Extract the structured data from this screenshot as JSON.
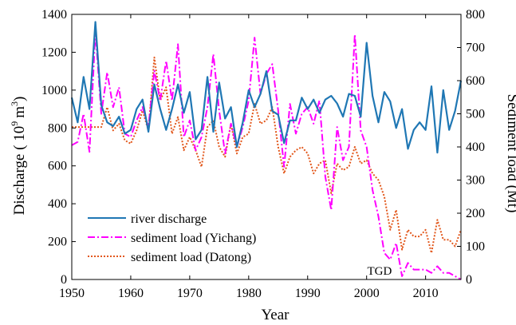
{
  "chart_data": {
    "type": "line",
    "xlabel": "Year",
    "ylabel_left": "Discharge ( 10",
    "ylabel_left_sup": "9",
    "ylabel_left_unit": "m",
    "ylabel_left_unit_sup": "3",
    "ylabel_left_close": ")",
    "ylabel_right": "Sediment load (Mt)",
    "xlim": [
      1950,
      2016
    ],
    "ylim_left": [
      0,
      1400
    ],
    "ylim_right": [
      0,
      800
    ],
    "xticks": [
      1950,
      1960,
      1970,
      1980,
      1990,
      2000,
      2010
    ],
    "yticks_left": [
      0,
      200,
      400,
      600,
      800,
      1000,
      1200,
      1400
    ],
    "yticks_right": [
      0,
      100,
      200,
      300,
      400,
      500,
      600,
      700,
      800
    ],
    "annotation": {
      "text": "TGD",
      "x": 2003,
      "y_right": 0
    },
    "series": [
      {
        "name": "river discharge",
        "axis": "left",
        "color": "#1f77b4",
        "style": "solid",
        "x": [
          1950,
          1951,
          1952,
          1953,
          1954,
          1955,
          1956,
          1957,
          1958,
          1959,
          1960,
          1961,
          1962,
          1963,
          1964,
          1965,
          1966,
          1967,
          1968,
          1969,
          1970,
          1971,
          1972,
          1973,
          1974,
          1975,
          1976,
          1977,
          1978,
          1979,
          1980,
          1981,
          1982,
          1983,
          1984,
          1985,
          1986,
          1987,
          1988,
          1989,
          1990,
          1991,
          1992,
          1993,
          1994,
          1995,
          1996,
          1997,
          1998,
          1999,
          2000,
          2001,
          2002,
          2003,
          2004,
          2005,
          2006,
          2007,
          2008,
          2009,
          2010,
          2011,
          2012,
          2013,
          2014,
          2015,
          2016
        ],
        "values": [
          960,
          830,
          1070,
          900,
          1360,
          920,
          830,
          810,
          860,
          770,
          790,
          900,
          950,
          780,
          1030,
          900,
          790,
          900,
          1030,
          880,
          990,
          740,
          790,
          1070,
          780,
          1040,
          850,
          910,
          700,
          830,
          1000,
          910,
          980,
          1100,
          890,
          870,
          720,
          840,
          840,
          960,
          900,
          950,
          880,
          950,
          970,
          930,
          860,
          980,
          970,
          860,
          1250,
          970,
          830,
          990,
          940,
          800,
          900,
          690,
          790,
          830,
          790,
          1020,
          670,
          1000,
          790,
          890,
          1050
        ]
      },
      {
        "name": "sediment load (Yichang)",
        "axis": "right",
        "color": "#ff00ff",
        "style": "dashdot",
        "x": [
          1950,
          1951,
          1952,
          1953,
          1954,
          1955,
          1956,
          1957,
          1958,
          1959,
          1960,
          1961,
          1962,
          1963,
          1964,
          1965,
          1966,
          1967,
          1968,
          1969,
          1970,
          1971,
          1972,
          1973,
          1974,
          1975,
          1976,
          1977,
          1978,
          1979,
          1980,
          1981,
          1982,
          1983,
          1984,
          1985,
          1986,
          1987,
          1988,
          1989,
          1990,
          1991,
          1992,
          1993,
          1994,
          1995,
          1996,
          1997,
          1998,
          1999,
          2000,
          2001,
          2002,
          2003,
          2004,
          2005,
          2006,
          2007,
          2008,
          2009,
          2010,
          2011,
          2012,
          2013,
          2014,
          2015,
          2016
        ],
        "values": [
          405,
          415,
          500,
          385,
          750,
          500,
          625,
          520,
          580,
          440,
          430,
          480,
          520,
          460,
          630,
          540,
          660,
          540,
          710,
          430,
          480,
          390,
          430,
          520,
          680,
          510,
          380,
          470,
          400,
          460,
          540,
          730,
          560,
          620,
          650,
          510,
          340,
          530,
          440,
          500,
          520,
          470,
          540,
          310,
          210,
          460,
          360,
          400,
          740,
          450,
          400,
          270,
          190,
          80,
          60,
          110,
          10,
          50,
          30,
          30,
          30,
          20,
          40,
          20,
          20,
          10,
          0
        ]
      },
      {
        "name": "sediment load (Datong)",
        "axis": "right",
        "color": "#e2571b",
        "style": "dotted",
        "x": [
          1950,
          1951,
          1952,
          1953,
          1954,
          1955,
          1956,
          1957,
          1958,
          1959,
          1960,
          1961,
          1962,
          1963,
          1964,
          1965,
          1966,
          1967,
          1968,
          1969,
          1970,
          1971,
          1972,
          1973,
          1974,
          1975,
          1976,
          1977,
          1978,
          1979,
          1980,
          1981,
          1982,
          1983,
          1984,
          1985,
          1986,
          1987,
          1988,
          1989,
          1990,
          1991,
          1992,
          1993,
          1994,
          1995,
          1996,
          1997,
          1998,
          1999,
          2000,
          2001,
          2002,
          2003,
          2004,
          2005,
          2006,
          2007,
          2008,
          2009,
          2010,
          2011,
          2012,
          2013,
          2014,
          2015,
          2016
        ],
        "values": [
          460,
          460,
          460,
          460,
          460,
          460,
          520,
          450,
          470,
          420,
          410,
          450,
          510,
          450,
          670,
          540,
          580,
          440,
          490,
          390,
          430,
          390,
          340,
          460,
          480,
          400,
          370,
          470,
          380,
          430,
          440,
          530,
          470,
          480,
          520,
          400,
          320,
          370,
          390,
          400,
          380,
          320,
          350,
          360,
          260,
          350,
          330,
          340,
          400,
          350,
          360,
          320,
          300,
          250,
          150,
          210,
          90,
          150,
          130,
          130,
          150,
          80,
          180,
          120,
          120,
          100,
          150
        ]
      }
    ]
  }
}
